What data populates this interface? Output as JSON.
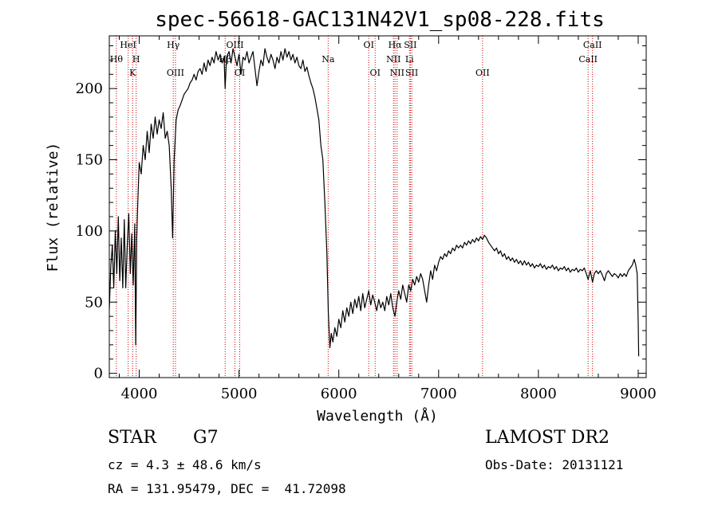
{
  "chart_data": {
    "type": "line",
    "title": "spec-56618-GAC131N42V1_sp08-228.fits",
    "xlabel": "Wavelength (Å)",
    "ylabel": "Flux (relative)",
    "xlim": [
      3700,
      9080
    ],
    "ylim": [
      -3,
      237
    ],
    "x_ticks": [
      4000,
      5000,
      6000,
      7000,
      8000,
      9000
    ],
    "y_ticks": [
      0,
      50,
      100,
      150,
      200
    ],
    "grid": false,
    "series": [
      {
        "color": "#000000",
        "points": [
          [
            3700,
            45
          ],
          [
            3715,
            75
          ],
          [
            3730,
            90
          ],
          [
            3745,
            60
          ],
          [
            3760,
            100
          ],
          [
            3775,
            70
          ],
          [
            3790,
            110
          ],
          [
            3805,
            65
          ],
          [
            3820,
            95
          ],
          [
            3835,
            60
          ],
          [
            3850,
            108
          ],
          [
            3865,
            60
          ],
          [
            3880,
            90
          ],
          [
            3895,
            112
          ],
          [
            3910,
            70
          ],
          [
            3925,
            98
          ],
          [
            3940,
            62
          ],
          [
            3955,
            105
          ],
          [
            3965,
            20
          ],
          [
            3975,
            95
          ],
          [
            3985,
            120
          ],
          [
            4000,
            148
          ],
          [
            4020,
            140
          ],
          [
            4040,
            160
          ],
          [
            4060,
            150
          ],
          [
            4080,
            170
          ],
          [
            4100,
            155
          ],
          [
            4120,
            175
          ],
          [
            4140,
            165
          ],
          [
            4160,
            180
          ],
          [
            4180,
            168
          ],
          [
            4200,
            178
          ],
          [
            4220,
            172
          ],
          [
            4240,
            183
          ],
          [
            4260,
            165
          ],
          [
            4280,
            170
          ],
          [
            4300,
            160
          ],
          [
            4320,
            130
          ],
          [
            4335,
            95
          ],
          [
            4350,
            150
          ],
          [
            4370,
            178
          ],
          [
            4390,
            185
          ],
          [
            4410,
            188
          ],
          [
            4430,
            192
          ],
          [
            4450,
            196
          ],
          [
            4470,
            198
          ],
          [
            4490,
            200
          ],
          [
            4510,
            204
          ],
          [
            4530,
            206
          ],
          [
            4550,
            210
          ],
          [
            4570,
            206
          ],
          [
            4590,
            212
          ],
          [
            4610,
            214
          ],
          [
            4630,
            210
          ],
          [
            4650,
            218
          ],
          [
            4670,
            212
          ],
          [
            4690,
            220
          ],
          [
            4710,
            216
          ],
          [
            4730,
            222
          ],
          [
            4750,
            218
          ],
          [
            4770,
            226
          ],
          [
            4790,
            220
          ],
          [
            4810,
            224
          ],
          [
            4830,
            218
          ],
          [
            4850,
            222
          ],
          [
            4861,
            200
          ],
          [
            4875,
            222
          ],
          [
            4900,
            226
          ],
          [
            4920,
            218
          ],
          [
            4940,
            228
          ],
          [
            4960,
            222
          ],
          [
            4980,
            216
          ],
          [
            5000,
            224
          ],
          [
            5020,
            210
          ],
          [
            5040,
            222
          ],
          [
            5060,
            220
          ],
          [
            5080,
            226
          ],
          [
            5100,
            218
          ],
          [
            5120,
            222
          ],
          [
            5140,
            226
          ],
          [
            5160,
            214
          ],
          [
            5180,
            202
          ],
          [
            5200,
            212
          ],
          [
            5220,
            220
          ],
          [
            5240,
            216
          ],
          [
            5260,
            228
          ],
          [
            5280,
            222
          ],
          [
            5300,
            218
          ],
          [
            5320,
            224
          ],
          [
            5340,
            220
          ],
          [
            5360,
            214
          ],
          [
            5380,
            222
          ],
          [
            5400,
            218
          ],
          [
            5420,
            226
          ],
          [
            5440,
            220
          ],
          [
            5460,
            228
          ],
          [
            5480,
            222
          ],
          [
            5500,
            226
          ],
          [
            5520,
            220
          ],
          [
            5540,
            224
          ],
          [
            5560,
            218
          ],
          [
            5580,
            222
          ],
          [
            5600,
            216
          ],
          [
            5620,
            214
          ],
          [
            5640,
            220
          ],
          [
            5660,
            212
          ],
          [
            5680,
            215
          ],
          [
            5700,
            209
          ],
          [
            5720,
            204
          ],
          [
            5740,
            200
          ],
          [
            5760,
            194
          ],
          [
            5780,
            186
          ],
          [
            5800,
            178
          ],
          [
            5820,
            160
          ],
          [
            5840,
            150
          ],
          [
            5860,
            120
          ],
          [
            5880,
            85
          ],
          [
            5895,
            42
          ],
          [
            5910,
            18
          ],
          [
            5925,
            28
          ],
          [
            5940,
            22
          ],
          [
            5960,
            32
          ],
          [
            5980,
            26
          ],
          [
            6000,
            38
          ],
          [
            6020,
            32
          ],
          [
            6040,
            44
          ],
          [
            6060,
            36
          ],
          [
            6080,
            46
          ],
          [
            6100,
            40
          ],
          [
            6120,
            50
          ],
          [
            6140,
            42
          ],
          [
            6160,
            52
          ],
          [
            6180,
            46
          ],
          [
            6200,
            54
          ],
          [
            6220,
            44
          ],
          [
            6240,
            56
          ],
          [
            6260,
            46
          ],
          [
            6280,
            52
          ],
          [
            6300,
            58
          ],
          [
            6320,
            48
          ],
          [
            6340,
            55
          ],
          [
            6360,
            50
          ],
          [
            6380,
            44
          ],
          [
            6400,
            52
          ],
          [
            6420,
            46
          ],
          [
            6440,
            50
          ],
          [
            6460,
            44
          ],
          [
            6480,
            54
          ],
          [
            6500,
            48
          ],
          [
            6520,
            56
          ],
          [
            6540,
            46
          ],
          [
            6563,
            40
          ],
          [
            6580,
            50
          ],
          [
            6600,
            58
          ],
          [
            6620,
            52
          ],
          [
            6640,
            62
          ],
          [
            6660,
            56
          ],
          [
            6680,
            50
          ],
          [
            6700,
            62
          ],
          [
            6720,
            58
          ],
          [
            6740,
            66
          ],
          [
            6760,
            62
          ],
          [
            6780,
            68
          ],
          [
            6800,
            64
          ],
          [
            6820,
            70
          ],
          [
            6840,
            66
          ],
          [
            6860,
            58
          ],
          [
            6880,
            50
          ],
          [
            6900,
            62
          ],
          [
            6920,
            72
          ],
          [
            6940,
            66
          ],
          [
            6960,
            76
          ],
          [
            6980,
            72
          ],
          [
            7000,
            78
          ],
          [
            7020,
            82
          ],
          [
            7040,
            80
          ],
          [
            7060,
            84
          ],
          [
            7080,
            82
          ],
          [
            7100,
            86
          ],
          [
            7120,
            84
          ],
          [
            7140,
            88
          ],
          [
            7160,
            86
          ],
          [
            7180,
            90
          ],
          [
            7200,
            88
          ],
          [
            7220,
            90
          ],
          [
            7240,
            88
          ],
          [
            7260,
            92
          ],
          [
            7280,
            90
          ],
          [
            7300,
            93
          ],
          [
            7320,
            91
          ],
          [
            7340,
            94
          ],
          [
            7360,
            92
          ],
          [
            7380,
            95
          ],
          [
            7400,
            93
          ],
          [
            7420,
            96
          ],
          [
            7440,
            94
          ],
          [
            7460,
            97
          ],
          [
            7480,
            95
          ],
          [
            7500,
            92
          ],
          [
            7520,
            90
          ],
          [
            7540,
            88
          ],
          [
            7560,
            86
          ],
          [
            7580,
            88
          ],
          [
            7600,
            84
          ],
          [
            7620,
            86
          ],
          [
            7640,
            82
          ],
          [
            7660,
            84
          ],
          [
            7680,
            80
          ],
          [
            7700,
            82
          ],
          [
            7720,
            79
          ],
          [
            7740,
            81
          ],
          [
            7760,
            78
          ],
          [
            7780,
            80
          ],
          [
            7800,
            77
          ],
          [
            7820,
            79
          ],
          [
            7840,
            76
          ],
          [
            7860,
            79
          ],
          [
            7880,
            76
          ],
          [
            7900,
            78
          ],
          [
            7920,
            75
          ],
          [
            7940,
            77
          ],
          [
            7960,
            74
          ],
          [
            7980,
            76
          ],
          [
            8000,
            75
          ],
          [
            8020,
            77
          ],
          [
            8040,
            74
          ],
          [
            8060,
            76
          ],
          [
            8080,
            73
          ],
          [
            8100,
            75
          ],
          [
            8120,
            74
          ],
          [
            8140,
            76
          ],
          [
            8160,
            73
          ],
          [
            8180,
            75
          ],
          [
            8200,
            72
          ],
          [
            8220,
            74
          ],
          [
            8240,
            73
          ],
          [
            8260,
            75
          ],
          [
            8280,
            72
          ],
          [
            8300,
            74
          ],
          [
            8320,
            71
          ],
          [
            8340,
            73
          ],
          [
            8360,
            72
          ],
          [
            8380,
            74
          ],
          [
            8400,
            71
          ],
          [
            8420,
            73
          ],
          [
            8440,
            72
          ],
          [
            8460,
            74
          ],
          [
            8480,
            70
          ],
          [
            8498,
            66
          ],
          [
            8520,
            72
          ],
          [
            8542,
            64
          ],
          [
            8560,
            70
          ],
          [
            8580,
            72
          ],
          [
            8600,
            70
          ],
          [
            8620,
            72
          ],
          [
            8640,
            69
          ],
          [
            8662,
            65
          ],
          [
            8680,
            70
          ],
          [
            8700,
            72
          ],
          [
            8720,
            70
          ],
          [
            8740,
            68
          ],
          [
            8760,
            70
          ],
          [
            8780,
            69
          ],
          [
            8800,
            67
          ],
          [
            8820,
            70
          ],
          [
            8840,
            68
          ],
          [
            8860,
            70
          ],
          [
            8880,
            68
          ],
          [
            8900,
            72
          ],
          [
            8920,
            74
          ],
          [
            8940,
            76
          ],
          [
            8960,
            80
          ],
          [
            8975,
            76
          ],
          [
            8990,
            70
          ],
          [
            9000,
            35
          ],
          [
            9005,
            12
          ]
        ]
      }
    ],
    "line_markers": {
      "color": "#cc0000",
      "style": "dotted",
      "lines": [
        {
          "wave": 3771,
          "label": "Hθ",
          "row": 1
        },
        {
          "wave": 3889,
          "label": "HeI",
          "row": 0
        },
        {
          "wave": 3934,
          "label": "K",
          "row": 2
        },
        {
          "wave": 3969,
          "label": "H",
          "row": 1
        },
        {
          "wave": 4341,
          "label": "Hγ",
          "row": 0
        },
        {
          "wave": 4363,
          "label": "OIII",
          "row": 2
        },
        {
          "wave": 4861,
          "label": "Hβ",
          "row": 1
        },
        {
          "wave": 4959,
          "label": "OIII",
          "row": 0
        },
        {
          "wave": 5007,
          "label": "OI",
          "row": 2
        },
        {
          "wave": 5893,
          "label": "Na",
          "row": 1
        },
        {
          "wave": 6300,
          "label": "OI",
          "row": 0
        },
        {
          "wave": 6364,
          "label": "OI",
          "row": 2
        },
        {
          "wave": 6548,
          "label": "NII",
          "row": 1
        },
        {
          "wave": 6563,
          "label": "Hα",
          "row": 0
        },
        {
          "wave": 6584,
          "label": "NII",
          "row": 2
        },
        {
          "wave": 6708,
          "label": "Li",
          "row": 1
        },
        {
          "wave": 6717,
          "label": "SII",
          "row": 0
        },
        {
          "wave": 6731,
          "label": "SII",
          "row": 2
        },
        {
          "wave": 7440,
          "label": "OII",
          "row": 2
        },
        {
          "wave": 8498,
          "label": "CaII",
          "row": 1
        },
        {
          "wave": 8542,
          "label": "CaII",
          "row": 0
        }
      ]
    }
  },
  "info": {
    "class": "STAR",
    "subclass": "G7",
    "survey": "LAMOST DR2",
    "cz": "cz = 4.3 ± 48.6 km/s",
    "obs_date": "Obs-Date: 20131121",
    "radec": "RA = 131.95479, DEC =  41.72098"
  }
}
